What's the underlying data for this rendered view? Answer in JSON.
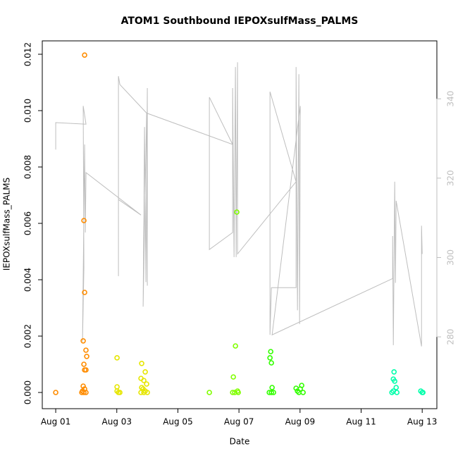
{
  "chart_data": {
    "type": "scatter",
    "title": "ATOM1 Southbound IEPOXsulfMass_PALMS",
    "xlabel": "Date",
    "ylabel": "IEPOXsulfMass_PALMS",
    "xlim": [
      0.56,
      13.48
    ],
    "ylim": [
      -0.000575,
      0.012475
    ],
    "y2lim": [
      261.9,
      354.6
    ],
    "xticks": [
      {
        "value": 1,
        "label": "Aug 01"
      },
      {
        "value": 3,
        "label": "Aug 03"
      },
      {
        "value": 5,
        "label": "Aug 05"
      },
      {
        "value": 7,
        "label": "Aug 07"
      },
      {
        "value": 9,
        "label": "Aug 09"
      },
      {
        "value": 11,
        "label": "Aug 11"
      },
      {
        "value": 13,
        "label": "Aug 13"
      }
    ],
    "yticks": [
      {
        "value": 0,
        "label": "0.000"
      },
      {
        "value": 0.002,
        "label": "0.002"
      },
      {
        "value": 0.004,
        "label": "0.004"
      },
      {
        "value": 0.006,
        "label": "0.006"
      },
      {
        "value": 0.008,
        "label": "0.008"
      },
      {
        "value": 0.01,
        "label": "0.010"
      },
      {
        "value": 0.012,
        "label": "0.012"
      }
    ],
    "y2ticks": [
      280,
      300,
      320,
      340
    ],
    "y2color": "#bebebe",
    "series": [
      {
        "color": "#ff8c00",
        "x": [
          1.0,
          1.946,
          1.923,
          1.946,
          1.9,
          1.99,
          2.015,
          1.923,
          1.946,
          1.99,
          1.9,
          1.946,
          1.877,
          1.99,
          1.923,
          1.854
        ],
        "values": [
          0,
          0.01197,
          0.0061,
          0.00355,
          0.00183,
          0.0015,
          0.00128,
          0.001,
          0.0008,
          0.0008,
          0.000225,
          0.000125,
          5e-05,
          0,
          0,
          0
        ]
      },
      {
        "color": "#e6e600",
        "x": [
          3.008,
          3.008,
          3.008,
          3.054,
          3.1,
          3.815,
          3.931,
          3.792,
          3.885,
          3.977,
          3.815,
          3.862,
          3.931,
          3.792,
          3.885,
          4.0
        ],
        "values": [
          0.00123,
          0.0002,
          5e-05,
          0,
          0,
          0.00103,
          0.00073,
          0.0005,
          0.000425,
          0.0003,
          0.000175,
          0.000125,
          5e-05,
          0,
          0,
          0
        ]
      },
      {
        "color": "#80ff00",
        "x": [
          6.031,
          6.816,
          6.885,
          6.93,
          6.793,
          6.862,
          6.954,
          6.977
        ],
        "values": [
          0,
          0.00055,
          0.00165,
          0.0064,
          0,
          0,
          5e-05,
          0
        ]
      },
      {
        "color": "#33ff00",
        "x": [
          8.04,
          8.016,
          8.062,
          8.085,
          7.993,
          8.062,
          8.131,
          8.87,
          8.916,
          9.008,
          9.054,
          9.1,
          8.962
        ],
        "values": [
          0.00145,
          0.00123,
          0.00105,
          0.000175,
          0,
          0,
          0,
          0.00015,
          5e-05,
          0.000125,
          0.00025,
          0,
          0
        ]
      },
      {
        "color": "#00ffaa",
        "x": [
          12.078,
          12.055,
          12.1,
          12.147,
          12.055,
          12.008,
          12.17,
          12.954,
          13.0,
          13.023
        ],
        "values": [
          0.00073,
          0.000475,
          0.0004,
          0.000175,
          5e-05,
          0,
          0,
          5e-05,
          0,
          0
        ]
      },
      {
        "type": "line",
        "axis": "y2",
        "color": "#bebebe",
        "x": [
          1.0,
          1.0,
          1.992,
          1.9,
          1.923,
          1.877,
          1.946,
          1.969,
          1.992,
          3.792,
          3.054,
          3.054,
          3.054,
          3.1,
          3.977,
          3.862,
          3.908,
          3.954,
          4.0,
          4.0,
          3.977,
          6.793,
          6.031,
          6.031,
          6.793,
          6.793,
          6.839,
          6.885,
          6.908,
          6.954,
          6.954,
          8.87,
          8.016,
          8.016,
          8.062,
          8.87,
          8.87,
          8.916,
          8.962,
          8.985,
          9.008,
          8.085,
          12.032,
          12.032,
          12.055,
          12.1,
          12.124,
          12.147,
          12.978,
          12.978,
          13.0
        ],
        "values": [
          327.2,
          334.0,
          333.6,
          338.2,
          297.4,
          278.8,
          328.5,
          306.3,
          321.4,
          310.7,
          314.6,
          295.3,
          345.7,
          343.6,
          336.4,
          287.6,
          332.9,
          293.8,
          342.7,
          292.9,
          336.4,
          328.5,
          340.4,
          302.0,
          306.3,
          342.7,
          300.1,
          348.0,
          300.1,
          349.2,
          300.9,
          319.1,
          341.8,
          280.5,
          292.4,
          292.4,
          348.0,
          286.7,
          346.2,
          283.2,
          338.2,
          280.5,
          294.7,
          305.4,
          277.9,
          319.1,
          293.6,
          314.3,
          277.6,
          308.0,
          300.9
        ]
      }
    ]
  }
}
